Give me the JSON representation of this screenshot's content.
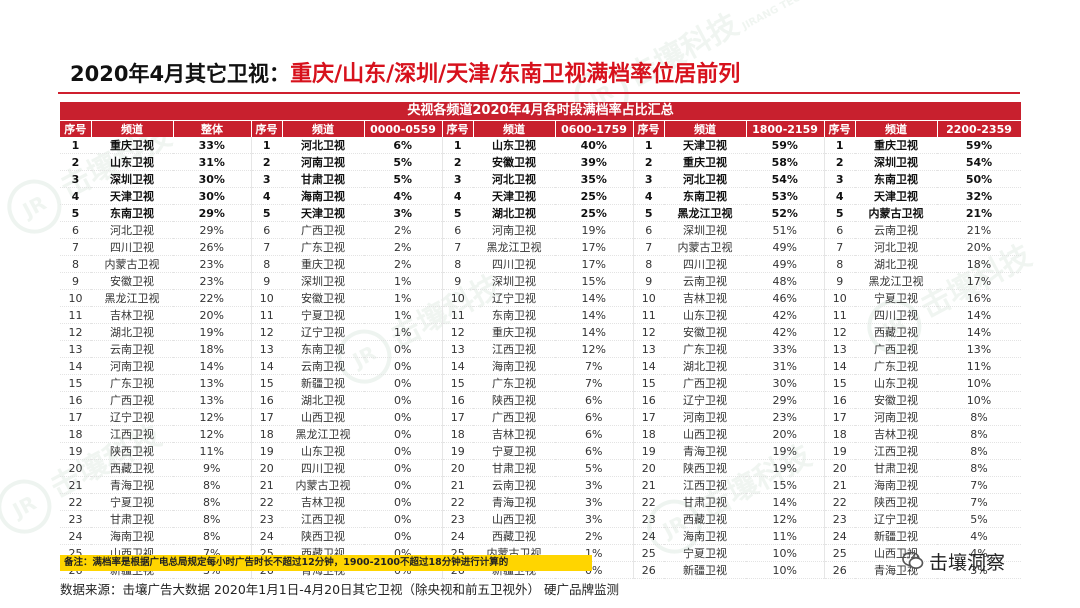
{
  "title": {
    "prefix": "2020年4月其它卫视：",
    "highlight": "重庆/山东/深圳/天津/东南卫视满档率位居前列"
  },
  "watermark": {
    "brand_cn": "击壤科技",
    "brand_en": "JIRANG TECHNOLOGY",
    "logo": "JR"
  },
  "table": {
    "caption": "央视各频道2020年4月各时段满档率占比汇总",
    "headers": [
      [
        "序号",
        "频道",
        "整体"
      ],
      [
        "序号",
        "频道",
        "0000-0559"
      ],
      [
        "序号",
        "频道",
        "0600-1759"
      ],
      [
        "序号",
        "频道",
        "1800-2159"
      ],
      [
        "序号",
        "频道",
        "2200-2359"
      ]
    ],
    "rows": [
      [
        [
          "1",
          "重庆卫视",
          "33%"
        ],
        [
          "1",
          "河北卫视",
          "6%"
        ],
        [
          "1",
          "山东卫视",
          "40%"
        ],
        [
          "1",
          "天津卫视",
          "59%"
        ],
        [
          "1",
          "重庆卫视",
          "59%"
        ]
      ],
      [
        [
          "2",
          "山东卫视",
          "31%"
        ],
        [
          "2",
          "河南卫视",
          "5%"
        ],
        [
          "2",
          "安徽卫视",
          "39%"
        ],
        [
          "2",
          "重庆卫视",
          "58%"
        ],
        [
          "2",
          "深圳卫视",
          "54%"
        ]
      ],
      [
        [
          "3",
          "深圳卫视",
          "30%"
        ],
        [
          "3",
          "甘肃卫视",
          "5%"
        ],
        [
          "3",
          "河北卫视",
          "35%"
        ],
        [
          "3",
          "河北卫视",
          "54%"
        ],
        [
          "3",
          "东南卫视",
          "50%"
        ]
      ],
      [
        [
          "4",
          "天津卫视",
          "30%"
        ],
        [
          "4",
          "海南卫视",
          "4%"
        ],
        [
          "4",
          "天津卫视",
          "25%"
        ],
        [
          "4",
          "东南卫视",
          "53%"
        ],
        [
          "4",
          "天津卫视",
          "32%"
        ]
      ],
      [
        [
          "5",
          "东南卫视",
          "29%"
        ],
        [
          "5",
          "天津卫视",
          "3%"
        ],
        [
          "5",
          "湖北卫视",
          "25%"
        ],
        [
          "5",
          "黑龙江卫视",
          "52%"
        ],
        [
          "5",
          "内蒙古卫视",
          "21%"
        ]
      ],
      [
        [
          "6",
          "河北卫视",
          "29%"
        ],
        [
          "6",
          "广西卫视",
          "2%"
        ],
        [
          "6",
          "河南卫视",
          "19%"
        ],
        [
          "6",
          "深圳卫视",
          "51%"
        ],
        [
          "6",
          "云南卫视",
          "21%"
        ]
      ],
      [
        [
          "7",
          "四川卫视",
          "26%"
        ],
        [
          "7",
          "广东卫视",
          "2%"
        ],
        [
          "7",
          "黑龙江卫视",
          "17%"
        ],
        [
          "7",
          "内蒙古卫视",
          "49%"
        ],
        [
          "7",
          "河北卫视",
          "20%"
        ]
      ],
      [
        [
          "8",
          "内蒙古卫视",
          "23%"
        ],
        [
          "8",
          "重庆卫视",
          "2%"
        ],
        [
          "8",
          "四川卫视",
          "17%"
        ],
        [
          "8",
          "四川卫视",
          "49%"
        ],
        [
          "8",
          "湖北卫视",
          "18%"
        ]
      ],
      [
        [
          "9",
          "安徽卫视",
          "23%"
        ],
        [
          "9",
          "深圳卫视",
          "1%"
        ],
        [
          "9",
          "深圳卫视",
          "15%"
        ],
        [
          "9",
          "云南卫视",
          "48%"
        ],
        [
          "9",
          "黑龙江卫视",
          "17%"
        ]
      ],
      [
        [
          "10",
          "黑龙江卫视",
          "22%"
        ],
        [
          "10",
          "安徽卫视",
          "1%"
        ],
        [
          "10",
          "辽宁卫视",
          "14%"
        ],
        [
          "10",
          "吉林卫视",
          "46%"
        ],
        [
          "10",
          "宁夏卫视",
          "16%"
        ]
      ],
      [
        [
          "11",
          "吉林卫视",
          "20%"
        ],
        [
          "11",
          "宁夏卫视",
          "1%"
        ],
        [
          "11",
          "东南卫视",
          "14%"
        ],
        [
          "11",
          "山东卫视",
          "42%"
        ],
        [
          "11",
          "四川卫视",
          "14%"
        ]
      ],
      [
        [
          "12",
          "湖北卫视",
          "19%"
        ],
        [
          "12",
          "辽宁卫视",
          "1%"
        ],
        [
          "12",
          "重庆卫视",
          "14%"
        ],
        [
          "12",
          "安徽卫视",
          "42%"
        ],
        [
          "12",
          "西藏卫视",
          "14%"
        ]
      ],
      [
        [
          "13",
          "云南卫视",
          "18%"
        ],
        [
          "13",
          "东南卫视",
          "0%"
        ],
        [
          "13",
          "江西卫视",
          "12%"
        ],
        [
          "13",
          "广东卫视",
          "33%"
        ],
        [
          "13",
          "广西卫视",
          "13%"
        ]
      ],
      [
        [
          "14",
          "河南卫视",
          "14%"
        ],
        [
          "14",
          "云南卫视",
          "0%"
        ],
        [
          "14",
          "海南卫视",
          "7%"
        ],
        [
          "14",
          "湖北卫视",
          "31%"
        ],
        [
          "14",
          "广东卫视",
          "11%"
        ]
      ],
      [
        [
          "15",
          "广东卫视",
          "13%"
        ],
        [
          "15",
          "新疆卫视",
          "0%"
        ],
        [
          "15",
          "广东卫视",
          "7%"
        ],
        [
          "15",
          "广西卫视",
          "30%"
        ],
        [
          "15",
          "山东卫视",
          "10%"
        ]
      ],
      [
        [
          "16",
          "广西卫视",
          "13%"
        ],
        [
          "16",
          "湖北卫视",
          "0%"
        ],
        [
          "16",
          "陕西卫视",
          "6%"
        ],
        [
          "16",
          "辽宁卫视",
          "29%"
        ],
        [
          "16",
          "安徽卫视",
          "10%"
        ]
      ],
      [
        [
          "17",
          "辽宁卫视",
          "12%"
        ],
        [
          "17",
          "山西卫视",
          "0%"
        ],
        [
          "17",
          "广西卫视",
          "6%"
        ],
        [
          "17",
          "河南卫视",
          "23%"
        ],
        [
          "17",
          "河南卫视",
          "8%"
        ]
      ],
      [
        [
          "18",
          "江西卫视",
          "12%"
        ],
        [
          "18",
          "黑龙江卫视",
          "0%"
        ],
        [
          "18",
          "吉林卫视",
          "6%"
        ],
        [
          "18",
          "山西卫视",
          "20%"
        ],
        [
          "18",
          "吉林卫视",
          "8%"
        ]
      ],
      [
        [
          "19",
          "陕西卫视",
          "11%"
        ],
        [
          "19",
          "山东卫视",
          "0%"
        ],
        [
          "19",
          "宁夏卫视",
          "6%"
        ],
        [
          "19",
          "青海卫视",
          "19%"
        ],
        [
          "19",
          "江西卫视",
          "8%"
        ]
      ],
      [
        [
          "20",
          "西藏卫视",
          "9%"
        ],
        [
          "20",
          "四川卫视",
          "0%"
        ],
        [
          "20",
          "甘肃卫视",
          "5%"
        ],
        [
          "20",
          "陕西卫视",
          "19%"
        ],
        [
          "20",
          "甘肃卫视",
          "8%"
        ]
      ],
      [
        [
          "21",
          "青海卫视",
          "8%"
        ],
        [
          "21",
          "内蒙古卫视",
          "0%"
        ],
        [
          "21",
          "云南卫视",
          "3%"
        ],
        [
          "21",
          "江西卫视",
          "15%"
        ],
        [
          "21",
          "海南卫视",
          "7%"
        ]
      ],
      [
        [
          "22",
          "宁夏卫视",
          "8%"
        ],
        [
          "22",
          "吉林卫视",
          "0%"
        ],
        [
          "22",
          "青海卫视",
          "3%"
        ],
        [
          "22",
          "甘肃卫视",
          "14%"
        ],
        [
          "22",
          "陕西卫视",
          "7%"
        ]
      ],
      [
        [
          "23",
          "甘肃卫视",
          "8%"
        ],
        [
          "23",
          "江西卫视",
          "0%"
        ],
        [
          "23",
          "山西卫视",
          "3%"
        ],
        [
          "23",
          "西藏卫视",
          "12%"
        ],
        [
          "23",
          "辽宁卫视",
          "5%"
        ]
      ],
      [
        [
          "24",
          "海南卫视",
          "8%"
        ],
        [
          "24",
          "陕西卫视",
          "0%"
        ],
        [
          "24",
          "西藏卫视",
          "2%"
        ],
        [
          "24",
          "海南卫视",
          "11%"
        ],
        [
          "24",
          "新疆卫视",
          "4%"
        ]
      ],
      [
        [
          "25",
          "山西卫视",
          "7%"
        ],
        [
          "25",
          "西藏卫视",
          "0%"
        ],
        [
          "25",
          "内蒙古卫视",
          "1%"
        ],
        [
          "25",
          "宁夏卫视",
          "10%"
        ],
        [
          "25",
          "山西卫视",
          "4%"
        ]
      ],
      [
        [
          "26",
          "新疆卫视",
          "3%"
        ],
        [
          "26",
          "青海卫视",
          "0%"
        ],
        [
          "26",
          "新疆卫视",
          "0%"
        ],
        [
          "26",
          "新疆卫视",
          "10%"
        ],
        [
          "26",
          "青海卫视",
          "3%"
        ]
      ]
    ]
  },
  "note": "备注：满档率是根据广电总局规定每小时广告时长不超过12分钟，1900-2100不超过18分钟进行计算的",
  "source": "数据来源：击壤广告大数据 2020年1月1日-4月20日其它卫视（除央视和前五卫视外） 硬广品牌监测",
  "brand_account": "击壤洞察",
  "colors": {
    "accent_red": "#c8202e",
    "title_red": "#d7111c",
    "note_yellow": "#ffd500"
  }
}
